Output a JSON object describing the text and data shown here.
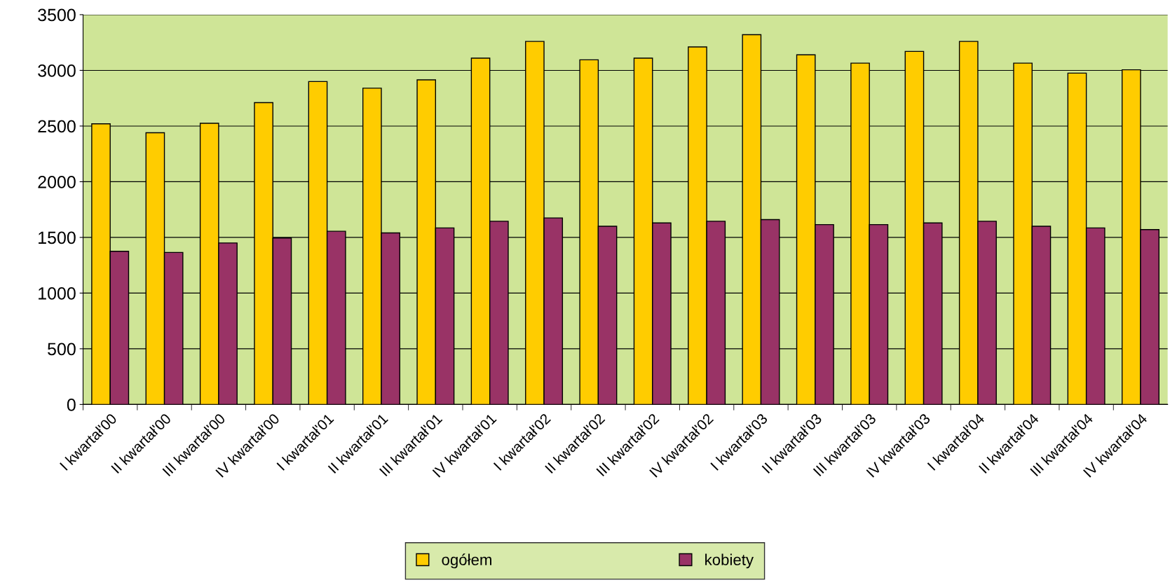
{
  "chart_data": {
    "type": "bar",
    "categories": [
      "I kwartał'00",
      "II kwartał'00",
      "III kwartał'00",
      "IV kwartał'00",
      "I kwartał'01",
      "II kwartał'01",
      "III kwartał'01",
      "IV kwartał'01",
      "I kwartał'02",
      "II kwartał'02",
      "III kwartał'02",
      "IV kwartał'02",
      "I kwartał'03",
      "II kwartał'03",
      "III kwartał'03",
      "IV kwartał'03",
      "I kwartał'04",
      "II kwartał'04",
      "III kwartał'04",
      "IV kwartał'04"
    ],
    "series": [
      {
        "name": "ogółem",
        "color": "#ffcc00",
        "values": [
          2520,
          2440,
          2525,
          2710,
          2900,
          2840,
          2915,
          3110,
          3260,
          3095,
          3110,
          3210,
          3320,
          3140,
          3065,
          3170,
          3260,
          3065,
          2975,
          3005
        ]
      },
      {
        "name": "kobiety",
        "color": "#993366",
        "values": [
          1375,
          1365,
          1450,
          1495,
          1555,
          1540,
          1585,
          1645,
          1675,
          1600,
          1630,
          1645,
          1660,
          1615,
          1615,
          1630,
          1645,
          1600,
          1585,
          1570
        ]
      }
    ],
    "ylim": [
      0,
      3500
    ],
    "yticks": [
      0,
      500,
      1000,
      1500,
      2000,
      2500,
      3000,
      3500
    ],
    "grid": "y",
    "legend": "bottom"
  }
}
